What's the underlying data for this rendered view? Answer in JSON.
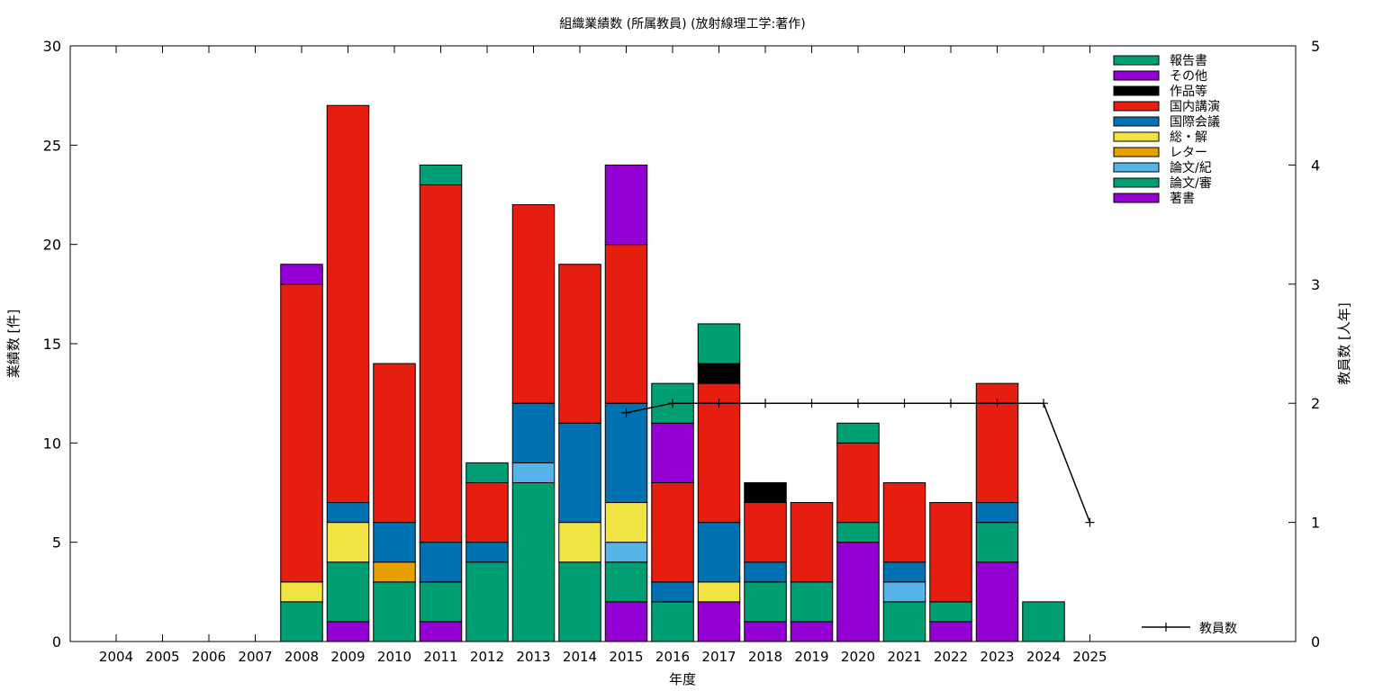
{
  "chart_data": {
    "type": "bar",
    "stacked": true,
    "title": "組織業績数 (所属教員) (放射線理工学:著作)",
    "xlabel": "年度",
    "ylabel": "業績数 [件]",
    "y2label": "教員数 [人年]",
    "ylim": [
      0,
      30
    ],
    "y2lim": [
      0,
      5
    ],
    "yticks": [
      0,
      5,
      10,
      15,
      20,
      25,
      30
    ],
    "y2ticks": [
      0,
      1,
      2,
      3,
      4,
      5
    ],
    "grid": false,
    "legend_position": "top-right",
    "categories": [
      "2004",
      "2005",
      "2006",
      "2007",
      "2008",
      "2009",
      "2010",
      "2011",
      "2012",
      "2013",
      "2014",
      "2015",
      "2016",
      "2017",
      "2018",
      "2019",
      "2020",
      "2021",
      "2022",
      "2023",
      "2024",
      "2025"
    ],
    "series": [
      {
        "name": "著書",
        "color": "#9400d3",
        "values": [
          0,
          0,
          0,
          0,
          0,
          1,
          0,
          1,
          0,
          0,
          0,
          2,
          0,
          2,
          1,
          1,
          5,
          0,
          1,
          4,
          0,
          0
        ]
      },
      {
        "name": "論文/審",
        "color": "#009e73",
        "values": [
          0,
          0,
          0,
          0,
          2,
          3,
          3,
          2,
          4,
          8,
          4,
          2,
          2,
          0,
          2,
          2,
          1,
          2,
          1,
          2,
          2,
          0
        ]
      },
      {
        "name": "論文/紀",
        "color": "#56b4e9",
        "values": [
          0,
          0,
          0,
          0,
          0,
          0,
          0,
          0,
          0,
          1,
          0,
          1,
          0,
          0,
          0,
          0,
          0,
          1,
          0,
          0,
          0,
          0
        ]
      },
      {
        "name": "レター",
        "color": "#e69f00",
        "values": [
          0,
          0,
          0,
          0,
          0,
          0,
          1,
          0,
          0,
          0,
          0,
          0,
          0,
          0,
          0,
          0,
          0,
          0,
          0,
          0,
          0,
          0
        ]
      },
      {
        "name": "総・解",
        "color": "#f0e442",
        "values": [
          0,
          0,
          0,
          0,
          1,
          2,
          0,
          0,
          0,
          0,
          2,
          2,
          0,
          1,
          0,
          0,
          0,
          0,
          0,
          0,
          0,
          0
        ]
      },
      {
        "name": "国際会議",
        "color": "#0072b2",
        "values": [
          0,
          0,
          0,
          0,
          0,
          1,
          2,
          2,
          1,
          3,
          5,
          5,
          1,
          3,
          1,
          0,
          0,
          1,
          0,
          1,
          0,
          0
        ]
      },
      {
        "name": "国内講演",
        "color": "#e51e10",
        "values": [
          0,
          0,
          0,
          0,
          15,
          20,
          8,
          18,
          3,
          10,
          8,
          8,
          5,
          7,
          3,
          4,
          4,
          4,
          5,
          6,
          0,
          0
        ]
      },
      {
        "name": "作品等",
        "color": "#000000",
        "values": [
          0,
          0,
          0,
          0,
          0,
          0,
          0,
          0,
          0,
          0,
          0,
          0,
          0,
          1,
          1,
          0,
          0,
          0,
          0,
          0,
          0,
          0
        ]
      },
      {
        "name": "その他",
        "color": "#9400d3",
        "values": [
          0,
          0,
          0,
          0,
          1,
          0,
          0,
          0,
          0,
          0,
          0,
          4,
          3,
          0,
          0,
          0,
          0,
          0,
          0,
          0,
          0,
          0
        ]
      },
      {
        "name": "報告書",
        "color": "#009e73",
        "values": [
          0,
          0,
          0,
          0,
          0,
          0,
          0,
          1,
          1,
          0,
          0,
          0,
          2,
          2,
          0,
          0,
          1,
          0,
          0,
          0,
          0,
          0
        ]
      }
    ],
    "line_series": {
      "name": "教員数",
      "axis": "y2",
      "color": "#000000",
      "x": [
        "2015",
        "2016",
        "2017",
        "2018",
        "2019",
        "2020",
        "2021",
        "2022",
        "2023",
        "2024",
        "2025"
      ],
      "values": [
        1.92,
        2,
        2,
        2,
        2,
        2,
        2,
        2,
        2,
        2,
        1
      ]
    }
  }
}
